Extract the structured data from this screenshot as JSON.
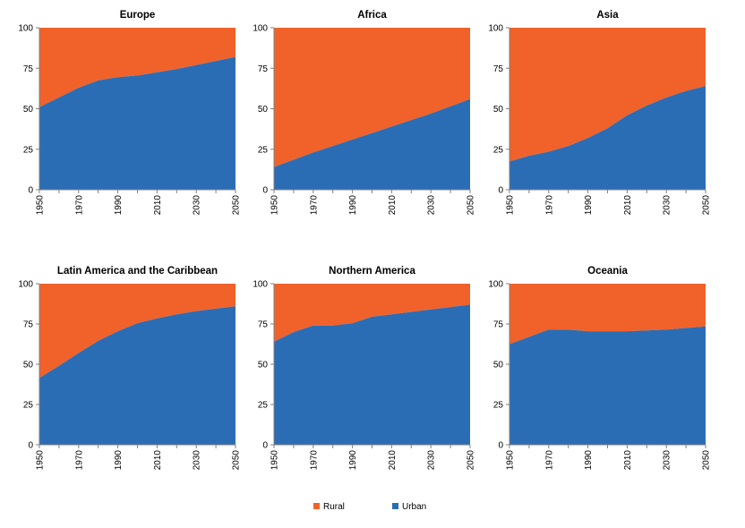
{
  "colors": {
    "rural": "#F0622A",
    "urban": "#2B6DB4",
    "axis": "#808080"
  },
  "legend": [
    {
      "key": "rural",
      "label": "Rural"
    },
    {
      "key": "urban",
      "label": "Urban"
    }
  ],
  "chart_data": [
    {
      "type": "area",
      "title": "Europe",
      "x": [
        1950,
        1960,
        1970,
        1980,
        1990,
        2000,
        2010,
        2020,
        2030,
        2040,
        2050
      ],
      "xticks": [
        "1950",
        "1970",
        "1990",
        "2010",
        "2030",
        "2050"
      ],
      "yticks": [
        "0",
        "25",
        "50",
        "75",
        "100"
      ],
      "ylim": [
        0,
        100
      ],
      "series": [
        {
          "name": "Urban",
          "values": [
            51,
            57,
            63,
            67.5,
            69.5,
            70.5,
            72.5,
            74.5,
            77,
            79.5,
            82
          ]
        },
        {
          "name": "Rural",
          "values": [
            49,
            43,
            37,
            32.5,
            30.5,
            29.5,
            27.5,
            25.5,
            23,
            20.5,
            18
          ]
        }
      ]
    },
    {
      "type": "area",
      "title": "Africa",
      "x": [
        1950,
        1960,
        1970,
        1980,
        1990,
        2000,
        2010,
        2020,
        2030,
        2040,
        2050
      ],
      "xticks": [
        "1950",
        "1970",
        "1990",
        "2010",
        "2030",
        "2050"
      ],
      "yticks": [
        "0",
        "25",
        "50",
        "75",
        "100"
      ],
      "ylim": [
        0,
        100
      ],
      "series": [
        {
          "name": "Urban",
          "values": [
            14,
            18.5,
            23,
            27,
            31,
            35,
            39,
            43,
            47,
            51.5,
            56
          ]
        },
        {
          "name": "Rural",
          "values": [
            86,
            81.5,
            77,
            73,
            69,
            65,
            61,
            57,
            53,
            48.5,
            44
          ]
        }
      ]
    },
    {
      "type": "area",
      "title": "Asia",
      "x": [
        1950,
        1960,
        1970,
        1980,
        1990,
        2000,
        2010,
        2020,
        2030,
        2040,
        2050
      ],
      "xticks": [
        "1950",
        "1970",
        "1990",
        "2010",
        "2030",
        "2050"
      ],
      "yticks": [
        "0",
        "25",
        "50",
        "75",
        "100"
      ],
      "ylim": [
        0,
        100
      ],
      "series": [
        {
          "name": "Urban",
          "values": [
            17.5,
            21,
            23.5,
            27,
            32,
            38,
            46,
            52,
            57,
            61,
            64
          ]
        },
        {
          "name": "Rural",
          "values": [
            82.5,
            79,
            76.5,
            73,
            68,
            62,
            54,
            48,
            43,
            39,
            36
          ]
        }
      ]
    },
    {
      "type": "area",
      "title": "Latin America and the Caribbean",
      "x": [
        1950,
        1960,
        1970,
        1980,
        1990,
        2000,
        2010,
        2020,
        2030,
        2040,
        2050
      ],
      "xticks": [
        "1950",
        "1970",
        "1990",
        "2010",
        "2030",
        "2050"
      ],
      "yticks": [
        "0",
        "25",
        "50",
        "75",
        "100"
      ],
      "ylim": [
        0,
        100
      ],
      "series": [
        {
          "name": "Urban",
          "values": [
            41.5,
            49,
            57,
            64.5,
            70.5,
            75.5,
            78.5,
            81,
            83,
            84.5,
            86
          ]
        },
        {
          "name": "Rural",
          "values": [
            58.5,
            51,
            43,
            35.5,
            29.5,
            24.5,
            21.5,
            19,
            17,
            15.5,
            14
          ]
        }
      ]
    },
    {
      "type": "area",
      "title": "Northern America",
      "x": [
        1950,
        1960,
        1970,
        1980,
        1990,
        2000,
        2010,
        2020,
        2030,
        2040,
        2050
      ],
      "xticks": [
        "1950",
        "1970",
        "1990",
        "2010",
        "2030",
        "2050"
      ],
      "yticks": [
        "0",
        "25",
        "50",
        "75",
        "100"
      ],
      "ylim": [
        0,
        100
      ],
      "series": [
        {
          "name": "Urban",
          "values": [
            64,
            70,
            74,
            74,
            75.5,
            79.5,
            81,
            82.5,
            84,
            85.5,
            87
          ]
        },
        {
          "name": "Rural",
          "values": [
            36,
            30,
            26,
            26,
            24.5,
            20.5,
            19,
            17.5,
            16,
            14.5,
            13
          ]
        }
      ]
    },
    {
      "type": "area",
      "title": "Oceania",
      "x": [
        1950,
        1960,
        1970,
        1980,
        1990,
        2000,
        2010,
        2020,
        2030,
        2040,
        2050
      ],
      "xticks": [
        "1950",
        "1970",
        "1990",
        "2010",
        "2030",
        "2050"
      ],
      "yticks": [
        "0",
        "25",
        "50",
        "75",
        "100"
      ],
      "ylim": [
        0,
        100
      ],
      "series": [
        {
          "name": "Urban",
          "values": [
            62.5,
            67,
            71.5,
            71.5,
            70.5,
            70.5,
            70.5,
            71,
            71.5,
            72.5,
            73.5
          ]
        },
        {
          "name": "Rural",
          "values": [
            37.5,
            33,
            28.5,
            28.5,
            29.5,
            29.5,
            29.5,
            29,
            28.5,
            27.5,
            26.5
          ]
        }
      ]
    }
  ]
}
